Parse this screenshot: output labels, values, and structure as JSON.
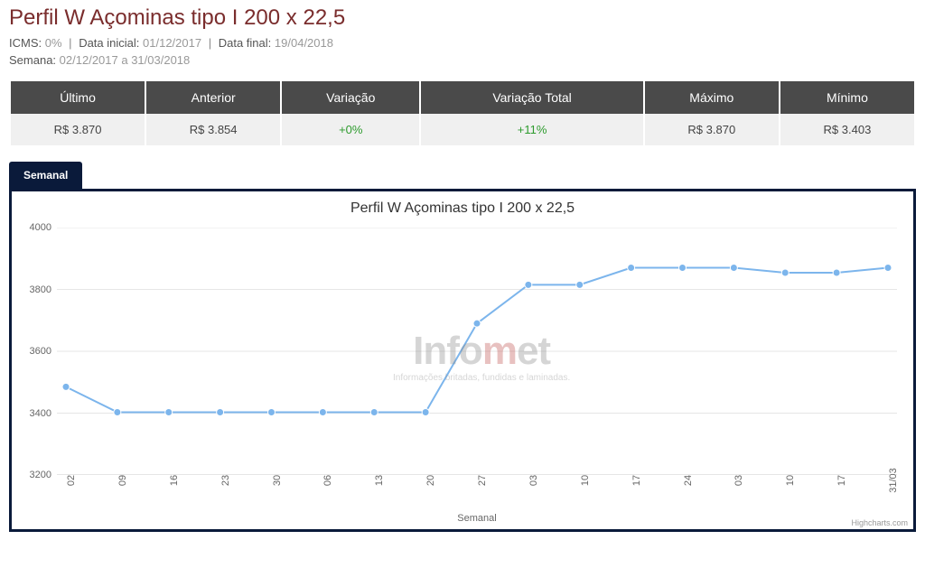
{
  "header": {
    "title": "Perfil W Açominas tipo I 200 x 22,5",
    "meta1": {
      "icms_label": "ICMS:",
      "icms_value": "0%",
      "data_inicial_label": "Data inicial:",
      "data_inicial_value": "01/12/2017",
      "data_final_label": "Data final:",
      "data_final_value": "19/04/2018"
    },
    "meta2": {
      "semana_label": "Semana:",
      "semana_value": "02/12/2017 a 31/03/2018"
    }
  },
  "stats": {
    "headers": [
      "Último",
      "Anterior",
      "Variação",
      "Variação Total",
      "Máximo",
      "Mínimo"
    ],
    "values": [
      "R$ 3.870",
      "R$ 3.854",
      "+0%",
      "+11%",
      "R$ 3.870",
      "R$ 3.403"
    ],
    "positive_color": "#2e9b2e",
    "header_bg": "#4a4a4a",
    "header_fg": "#ffffff",
    "cell_bg": "#f0f0f0",
    "cell_fg": "#444444"
  },
  "chart": {
    "tab_label": "Semanal",
    "title": "Perfil W Açominas tipo I 200 x 22,5",
    "type": "line",
    "frame_color": "#0a1a3a",
    "background_color": "#ffffff",
    "grid_color": "#e6e6e6",
    "series_color": "#7cb5ec",
    "marker_radius": 4,
    "line_width": 2,
    "y": {
      "min": 3200,
      "max": 4000,
      "tick_step": 200,
      "ticks": [
        3200,
        3400,
        3600,
        3800,
        4000
      ],
      "label_fontsize": 11,
      "label_color": "#666666"
    },
    "x": {
      "label": "Semanal",
      "categories": [
        "02",
        "09",
        "16",
        "23",
        "30",
        "06",
        "13",
        "20",
        "27",
        "03",
        "10",
        "17",
        "24",
        "03",
        "10",
        "17",
        "31/03"
      ],
      "label_fontsize": 11,
      "label_color": "#666666",
      "rotation_deg": -90
    },
    "values": [
      3485,
      3403,
      3403,
      3403,
      3403,
      3403,
      3403,
      3403,
      3690,
      3815,
      3815,
      3870,
      3870,
      3870,
      3854,
      3854,
      3870
    ],
    "watermark": {
      "text_plain": "Info",
      "text_accent": "m",
      "text_tail": "et",
      "accent_color": "#c0504d",
      "plain_color": "#8a8a8a",
      "subtitle": "Informações britadas, fundidas e laminadas."
    },
    "credit": "Highcharts.com"
  }
}
